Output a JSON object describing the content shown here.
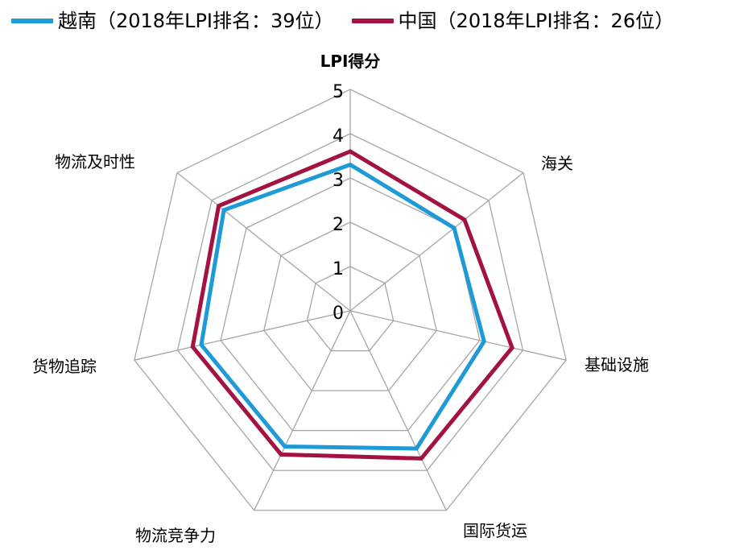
{
  "chart_data": {
    "type": "radar",
    "axes": [
      "LPI得分",
      "海关",
      "基础设施",
      "国际货运",
      "物流竞争力",
      "货物追踪",
      "物流及时性"
    ],
    "rlim": [
      0,
      5
    ],
    "ticks": [
      "0",
      "1",
      "2",
      "3",
      "4",
      "5"
    ],
    "grid": true,
    "legend": "top",
    "series": [
      {
        "name": "越南（2018年LPI排名：39位）",
        "color": "#1e9bd7",
        "values": [
          3.3,
          3.0,
          3.1,
          3.45,
          3.4,
          3.45,
          3.65
        ]
      },
      {
        "name": "中国（2018年LPI排名：26位）",
        "color": "#a4123f",
        "values": [
          3.6,
          3.3,
          3.75,
          3.7,
          3.6,
          3.65,
          3.8
        ]
      }
    ]
  }
}
